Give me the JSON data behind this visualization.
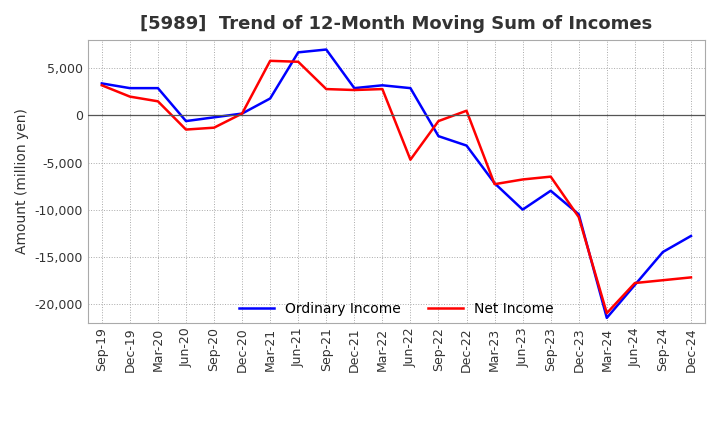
{
  "title": "[5989]  Trend of 12-Month Moving Sum of Incomes",
  "ylabel": "Amount (million yen)",
  "background_color": "#ffffff",
  "grid_color": "#aaaaaa",
  "ordinary_income_color": "#0000ff",
  "net_income_color": "#ff0000",
  "x_labels": [
    "Sep-19",
    "Dec-19",
    "Mar-20",
    "Jun-20",
    "Sep-20",
    "Dec-20",
    "Mar-21",
    "Jun-21",
    "Sep-21",
    "Dec-21",
    "Mar-22",
    "Jun-22",
    "Sep-22",
    "Dec-22",
    "Mar-23",
    "Jun-23",
    "Sep-23",
    "Dec-23",
    "Mar-24",
    "Jun-24",
    "Sep-24",
    "Dec-24"
  ],
  "ordinary_income": [
    3400,
    2900,
    2900,
    -600,
    -200,
    200,
    1800,
    6700,
    7000,
    2900,
    3200,
    2900,
    -2200,
    -3200,
    -7200,
    -10000,
    -8000,
    -10500,
    -21500,
    -18000,
    -14500,
    -12800
  ],
  "net_income": [
    3200,
    2000,
    1500,
    -1500,
    -1300,
    200,
    5800,
    5700,
    2800,
    2700,
    2800,
    -4700,
    -600,
    500,
    -7300,
    -6800,
    -6500,
    -10800,
    -21000,
    -17800,
    -17500,
    -17200
  ],
  "ylim": [
    -22000,
    8000
  ],
  "yticks": [
    5000,
    0,
    -5000,
    -10000,
    -15000,
    -20000
  ],
  "legend_labels": [
    "Ordinary Income",
    "Net Income"
  ],
  "title_fontsize": 13,
  "label_fontsize": 10,
  "tick_fontsize": 9
}
